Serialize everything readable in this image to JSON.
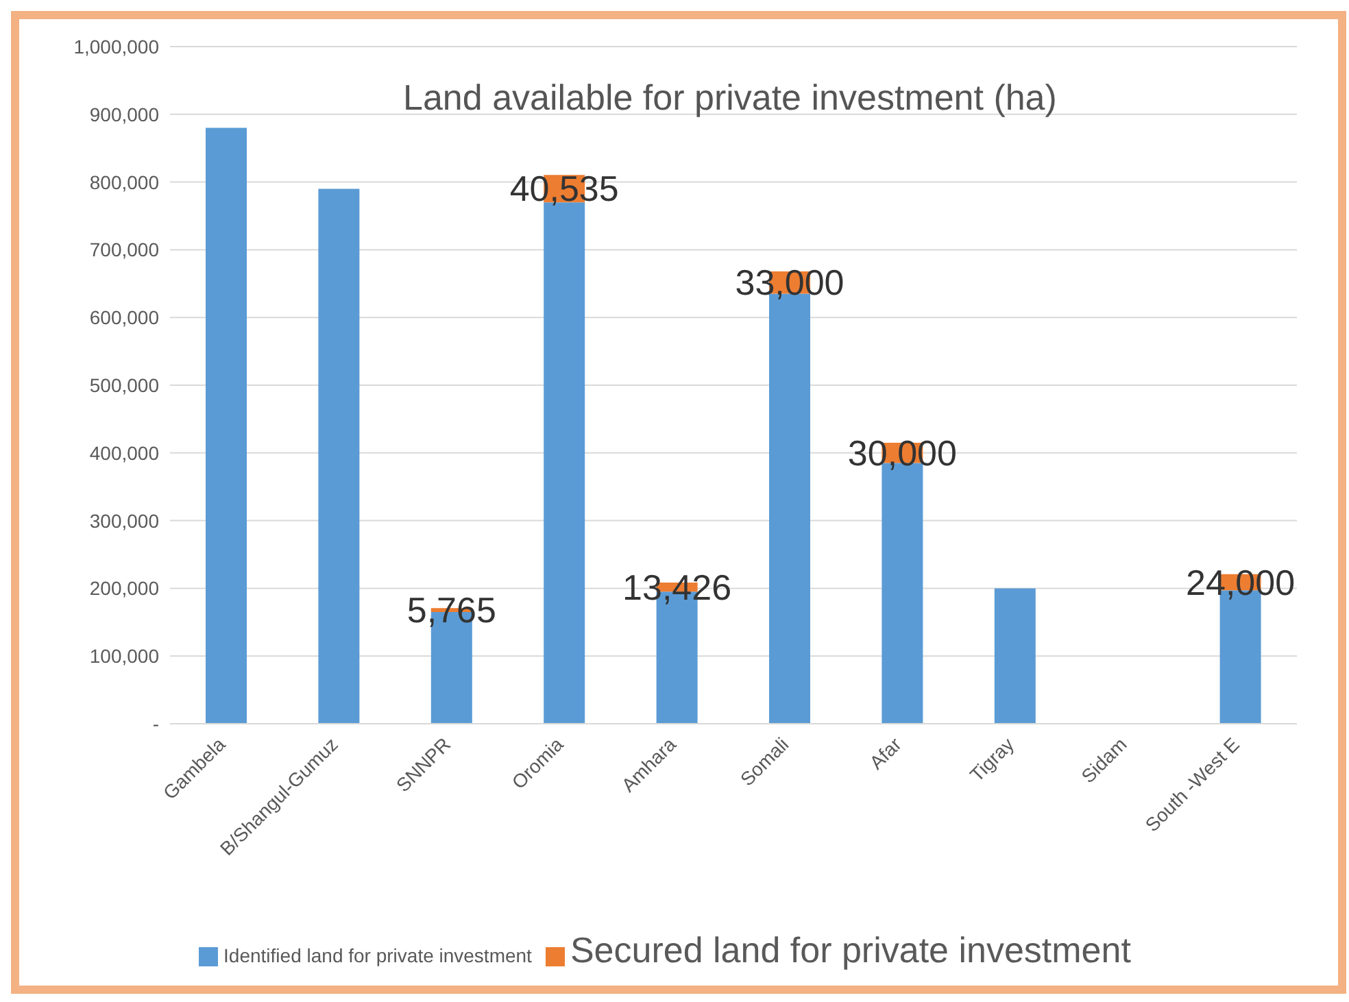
{
  "chart_data": {
    "type": "bar",
    "title": "Land available for private investment (ha)",
    "stacked": true,
    "categories": [
      "Gambela",
      "B/Shangul-Gumuz",
      "SNNPR",
      "Oromia",
      "Amhara",
      "Somali",
      "Afar",
      "Tigray",
      "Sidam",
      "South -West E"
    ],
    "series": [
      {
        "name": "Identified land for private investment",
        "color": "#5b9bd5",
        "values": [
          880000,
          790000,
          165000,
          770000,
          195000,
          635000,
          385000,
          200000,
          null,
          197000
        ]
      },
      {
        "name": "Secured land for private investment",
        "color": "#ed7d31",
        "values": [
          null,
          null,
          5765,
          40535,
          13426,
          33000,
          30000,
          null,
          null,
          24000
        ],
        "value_labels": [
          null,
          null,
          "5,765",
          "40,535",
          "13,426",
          "33,000",
          "30,000",
          null,
          null,
          "24,000"
        ]
      }
    ],
    "ylim": [
      0,
      1000000
    ],
    "yticks": [
      {
        "value": 0,
        "label": "-"
      },
      {
        "value": 100000,
        "label": "100,000"
      },
      {
        "value": 200000,
        "label": "200,000"
      },
      {
        "value": 300000,
        "label": "300,000"
      },
      {
        "value": 400000,
        "label": "400,000"
      },
      {
        "value": 500000,
        "label": "500,000"
      },
      {
        "value": 600000,
        "label": "600,000"
      },
      {
        "value": 700000,
        "label": "700,000"
      },
      {
        "value": 800000,
        "label": "800,000"
      },
      {
        "value": 900000,
        "label": "900,000"
      },
      {
        "value": 1000000,
        "label": "1,000,000"
      }
    ],
    "grid": "y",
    "legend": "bottom"
  }
}
